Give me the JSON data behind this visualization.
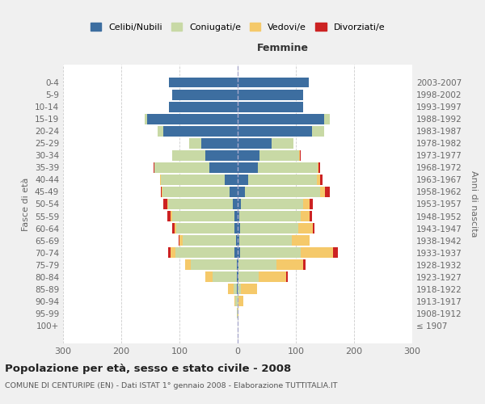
{
  "age_groups": [
    "100+",
    "95-99",
    "90-94",
    "85-89",
    "80-84",
    "75-79",
    "70-74",
    "65-69",
    "60-64",
    "55-59",
    "50-54",
    "45-49",
    "40-44",
    "35-39",
    "30-34",
    "25-29",
    "20-24",
    "15-19",
    "10-14",
    "5-9",
    "0-4"
  ],
  "birth_years": [
    "≤ 1907",
    "1908-1912",
    "1913-1917",
    "1918-1922",
    "1923-1927",
    "1928-1932",
    "1933-1937",
    "1938-1942",
    "1943-1947",
    "1948-1952",
    "1953-1957",
    "1958-1962",
    "1963-1967",
    "1968-1972",
    "1973-1977",
    "1978-1982",
    "1983-1987",
    "1988-1992",
    "1993-1997",
    "1998-2002",
    "2003-2007"
  ],
  "males": {
    "celibi": [
      0,
      0,
      0,
      1,
      1,
      2,
      5,
      3,
      5,
      5,
      8,
      14,
      22,
      48,
      55,
      62,
      128,
      155,
      118,
      112,
      118
    ],
    "coniugati": [
      0,
      1,
      4,
      6,
      42,
      78,
      102,
      92,
      100,
      108,
      112,
      115,
      110,
      95,
      58,
      22,
      10,
      5,
      0,
      0,
      0
    ],
    "vedovi": [
      0,
      0,
      2,
      10,
      12,
      10,
      8,
      5,
      3,
      2,
      1,
      1,
      1,
      0,
      0,
      0,
      0,
      0,
      0,
      0,
      0
    ],
    "divorziati": [
      0,
      0,
      0,
      0,
      0,
      0,
      4,
      1,
      4,
      6,
      7,
      2,
      1,
      1,
      0,
      0,
      0,
      0,
      0,
      0,
      0
    ]
  },
  "females": {
    "nubili": [
      0,
      0,
      0,
      0,
      1,
      2,
      4,
      3,
      4,
      3,
      5,
      12,
      18,
      35,
      38,
      58,
      128,
      148,
      112,
      112,
      122
    ],
    "coniugate": [
      0,
      0,
      2,
      6,
      35,
      65,
      105,
      90,
      100,
      105,
      108,
      130,
      118,
      102,
      68,
      38,
      20,
      10,
      0,
      0,
      0
    ],
    "vedove": [
      0,
      1,
      8,
      28,
      48,
      45,
      55,
      30,
      25,
      15,
      10,
      8,
      5,
      2,
      1,
      0,
      0,
      0,
      0,
      0,
      0
    ],
    "divorziate": [
      0,
      0,
      0,
      0,
      2,
      4,
      8,
      1,
      3,
      5,
      6,
      8,
      5,
      3,
      1,
      0,
      0,
      0,
      0,
      0,
      0
    ]
  },
  "colors": {
    "celibi": "#3d6ea0",
    "coniugati": "#c8d9a5",
    "vedovi": "#f5c96a",
    "divorziati": "#cc2222"
  },
  "xlim": [
    -300,
    300
  ],
  "xticks": [
    -300,
    -200,
    -100,
    0,
    100,
    200,
    300
  ],
  "xticklabels": [
    "300",
    "200",
    "100",
    "0",
    "100",
    "200",
    "300"
  ],
  "title": "Popolazione per età, sesso e stato civile - 2008",
  "subtitle": "COMUNE DI CENTURIPE (EN) - Dati ISTAT 1° gennaio 2008 - Elaborazione TUTTITALIA.IT",
  "ylabel_left": "Fasce di età",
  "ylabel_right": "Anni di nascita",
  "label_femmine": "Femmine",
  "legend_labels": [
    "Celibi/Nubili",
    "Coniugati/e",
    "Vedovi/e",
    "Divorziati/e"
  ],
  "bg_color": "#f0f0f0",
  "plot_bg_color": "#ffffff"
}
